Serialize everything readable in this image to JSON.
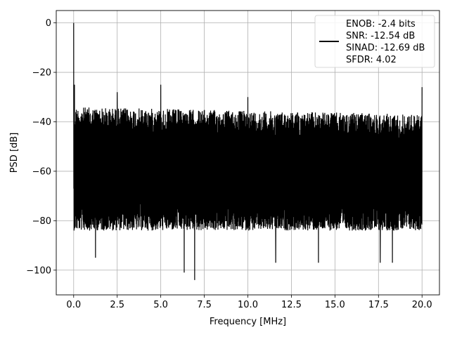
{
  "chart_data": {
    "type": "line",
    "title": "",
    "xlabel": "Frequency [MHz]",
    "ylabel": "PSD [dB]",
    "xlim": [
      -1.0,
      21.0
    ],
    "ylim": [
      -110,
      5
    ],
    "x_ticks": [
      0.0,
      2.5,
      5.0,
      7.5,
      10.0,
      12.5,
      15.0,
      17.5,
      20.0
    ],
    "x_tick_labels": [
      "0.0",
      "2.5",
      "5.0",
      "7.5",
      "10.0",
      "12.5",
      "15.0",
      "17.5",
      "20.0"
    ],
    "y_ticks": [
      0,
      -20,
      -40,
      -60,
      -80,
      -100
    ],
    "y_tick_labels": [
      "0",
      "−20",
      "−40",
      "−60",
      "−80",
      "−100"
    ],
    "grid": true,
    "legend_position": "top-right",
    "legend_lines": [
      "ENOB: -2.4 bits",
      "SNR: -12.54 dB",
      "SINAD: -12.69 dB",
      "SFDR: 4.02"
    ],
    "series": [
      {
        "color": "#000000",
        "noise_band": {
          "x_start": 0.0,
          "x_end": 20.0,
          "upper": -34,
          "lower": -78,
          "mean": -52
        },
        "peaks": [
          {
            "x": 0.0,
            "y": 0
          },
          {
            "x": 0.05,
            "y": -25
          },
          {
            "x": 2.5,
            "y": -28
          },
          {
            "x": 5.0,
            "y": -25
          },
          {
            "x": 10.0,
            "y": -30
          },
          {
            "x": 20.0,
            "y": -26
          }
        ],
        "dips": [
          {
            "x": 1.25,
            "y": -95
          },
          {
            "x": 6.35,
            "y": -101
          },
          {
            "x": 6.95,
            "y": -104
          },
          {
            "x": 11.6,
            "y": -97
          },
          {
            "x": 14.05,
            "y": -97
          },
          {
            "x": 17.6,
            "y": -97
          },
          {
            "x": 18.3,
            "y": -97
          }
        ]
      }
    ]
  }
}
